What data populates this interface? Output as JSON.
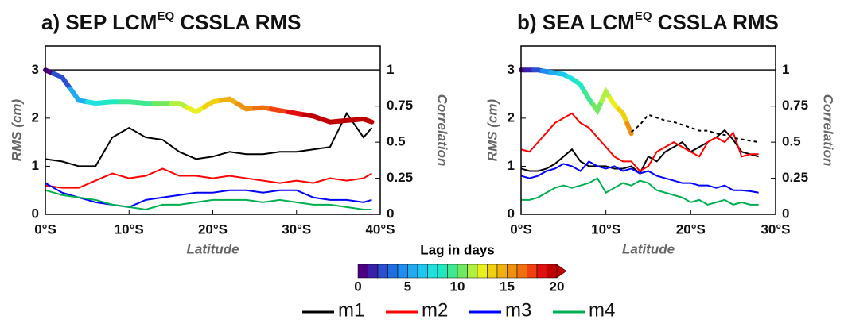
{
  "chart_data": [
    {
      "type": "line",
      "title": "a) SEP LCM",
      "title_sup": "EQ",
      "title_end": " CSSLA RMS",
      "x_label": "Latitude",
      "y_label": "RMS (cm)",
      "y2_label": "Correlation",
      "xlim": [
        0,
        40
      ],
      "xticks": [
        {
          "value": 0,
          "label": "0°S"
        },
        {
          "value": 10,
          "label": "10°S"
        },
        {
          "value": 20,
          "label": "20°S"
        },
        {
          "value": 30,
          "label": "30°S"
        },
        {
          "value": 40,
          "label": "40°S"
        }
      ],
      "ylim": [
        0,
        3.5
      ],
      "yticks": [
        0,
        1,
        2,
        3
      ],
      "y2lim": [
        0,
        1.1667
      ],
      "y2ticks": [
        0,
        0.25,
        0.5,
        0.75,
        1
      ],
      "reference_line": {
        "value": 1,
        "axis": "y2",
        "color": "#333333"
      },
      "series": [
        {
          "name": "m1",
          "color": "#000000",
          "x": [
            0,
            2,
            4,
            6,
            8,
            10,
            12,
            14,
            16,
            18,
            20,
            22,
            24,
            26,
            28,
            30,
            32,
            34,
            36,
            38,
            39
          ],
          "values": [
            1.15,
            1.1,
            1.0,
            1.0,
            1.6,
            1.8,
            1.6,
            1.55,
            1.3,
            1.15,
            1.2,
            1.3,
            1.25,
            1.25,
            1.3,
            1.3,
            1.35,
            1.4,
            2.1,
            1.6,
            1.8
          ]
        },
        {
          "name": "m2",
          "color": "#ff0000",
          "x": [
            0,
            2,
            4,
            6,
            8,
            10,
            12,
            14,
            16,
            18,
            20,
            22,
            24,
            26,
            28,
            30,
            32,
            34,
            36,
            38,
            39
          ],
          "values": [
            0.6,
            0.55,
            0.55,
            0.7,
            0.85,
            0.75,
            0.8,
            0.95,
            0.8,
            0.8,
            0.75,
            0.8,
            0.75,
            0.7,
            0.65,
            0.7,
            0.65,
            0.75,
            0.7,
            0.75,
            0.85
          ]
        },
        {
          "name": "m3",
          "color": "#0000ff",
          "x": [
            0,
            2,
            4,
            6,
            8,
            10,
            12,
            14,
            16,
            18,
            20,
            22,
            24,
            26,
            28,
            30,
            32,
            34,
            36,
            38,
            39
          ],
          "values": [
            0.65,
            0.45,
            0.35,
            0.25,
            0.2,
            0.15,
            0.3,
            0.35,
            0.4,
            0.45,
            0.45,
            0.5,
            0.5,
            0.45,
            0.5,
            0.5,
            0.35,
            0.3,
            0.3,
            0.25,
            0.3
          ]
        },
        {
          "name": "m4",
          "color": "#00b050",
          "x": [
            0,
            2,
            4,
            6,
            8,
            10,
            12,
            14,
            16,
            18,
            20,
            22,
            24,
            26,
            28,
            30,
            32,
            34,
            36,
            38,
            39
          ],
          "values": [
            0.5,
            0.4,
            0.35,
            0.3,
            0.2,
            0.15,
            0.1,
            0.2,
            0.2,
            0.25,
            0.3,
            0.3,
            0.3,
            0.25,
            0.3,
            0.25,
            0.2,
            0.2,
            0.15,
            0.1,
            0.1
          ]
        },
        {
          "axis": "y2",
          "x": [
            0,
            2,
            4,
            6,
            8,
            10,
            12,
            14,
            16,
            18,
            20,
            22,
            24,
            26,
            28,
            30,
            32,
            34,
            36,
            38,
            39
          ],
          "values": [
            1.0,
            0.95,
            0.79,
            0.77,
            0.78,
            0.78,
            0.77,
            0.77,
            0.77,
            0.71,
            0.78,
            0.8,
            0.73,
            0.74,
            0.72,
            0.7,
            0.68,
            0.64,
            0.65,
            0.66,
            0.64
          ],
          "lags": [
            0,
            2,
            5,
            7,
            8,
            9,
            9,
            10,
            11,
            12,
            13,
            14,
            15,
            16,
            17,
            18,
            19,
            19,
            20,
            20,
            19
          ]
        }
      ]
    },
    {
      "type": "line",
      "title": "b) SEA LCM",
      "title_sup": "EQ",
      "title_end": " CSSLA RMS",
      "x_label": "Latitude",
      "y_label": "RMS (cm)",
      "y2_label": "Correlation",
      "xlim": [
        0,
        30
      ],
      "xticks": [
        {
          "value": 0,
          "label": "0°S"
        },
        {
          "value": 10,
          "label": "10°S"
        },
        {
          "value": 20,
          "label": "20°S"
        },
        {
          "value": 30,
          "label": "30°S"
        }
      ],
      "ylim": [
        0,
        3.5
      ],
      "yticks": [
        0,
        1,
        2,
        3
      ],
      "y2lim": [
        0,
        1.1667
      ],
      "y2ticks": [
        0,
        0.25,
        0.5,
        0.75,
        1
      ],
      "reference_line": {
        "value": 1,
        "axis": "y2",
        "color": "#333333"
      },
      "series": [
        {
          "name": "m1",
          "color": "#000000",
          "x": [
            0,
            1,
            2,
            3,
            4,
            5,
            6,
            7,
            8,
            9,
            10,
            11,
            12,
            13,
            14,
            15,
            16,
            17,
            18,
            19,
            20,
            21,
            22,
            23,
            24,
            25,
            26,
            27,
            28
          ],
          "values": [
            0.95,
            0.9,
            0.9,
            0.95,
            1.05,
            1.2,
            1.35,
            1.1,
            1.0,
            1.0,
            1.0,
            0.95,
            0.95,
            1.0,
            0.85,
            1.2,
            1.1,
            1.3,
            1.4,
            1.5,
            1.3,
            1.4,
            1.5,
            1.6,
            1.75,
            1.55,
            1.3,
            1.25,
            1.2
          ]
        },
        {
          "name": "m2",
          "color": "#ff0000",
          "x": [
            0,
            1,
            2,
            3,
            4,
            5,
            6,
            7,
            8,
            9,
            10,
            11,
            12,
            13,
            14,
            15,
            16,
            17,
            18,
            19,
            20,
            21,
            22,
            23,
            24,
            25,
            26,
            27,
            28
          ],
          "values": [
            1.35,
            1.3,
            1.5,
            1.7,
            1.9,
            2.0,
            2.1,
            1.9,
            1.8,
            1.6,
            1.4,
            1.2,
            1.1,
            1.1,
            0.9,
            1.0,
            1.3,
            1.4,
            1.5,
            1.4,
            1.3,
            1.2,
            1.5,
            1.6,
            1.5,
            1.7,
            1.2,
            1.25,
            1.25
          ]
        },
        {
          "name": "m3",
          "color": "#0000ff",
          "x": [
            0,
            1,
            2,
            3,
            4,
            5,
            6,
            7,
            8,
            9,
            10,
            11,
            12,
            13,
            14,
            15,
            16,
            17,
            18,
            19,
            20,
            21,
            22,
            23,
            24,
            25,
            26,
            27,
            28
          ],
          "values": [
            0.8,
            0.75,
            0.8,
            0.9,
            0.95,
            1.05,
            1.0,
            0.9,
            1.1,
            1.0,
            0.95,
            1.0,
            0.9,
            0.95,
            0.85,
            0.9,
            0.8,
            0.75,
            0.7,
            0.65,
            0.65,
            0.6,
            0.6,
            0.55,
            0.6,
            0.5,
            0.5,
            0.48,
            0.45
          ]
        },
        {
          "name": "m4",
          "color": "#00b050",
          "x": [
            0,
            1,
            2,
            3,
            4,
            5,
            6,
            7,
            8,
            9,
            10,
            11,
            12,
            13,
            14,
            15,
            16,
            17,
            18,
            19,
            20,
            21,
            22,
            23,
            24,
            25,
            26,
            27,
            28
          ],
          "values": [
            0.3,
            0.3,
            0.35,
            0.45,
            0.55,
            0.6,
            0.55,
            0.6,
            0.65,
            0.75,
            0.45,
            0.55,
            0.65,
            0.6,
            0.7,
            0.65,
            0.5,
            0.45,
            0.4,
            0.35,
            0.25,
            0.3,
            0.2,
            0.25,
            0.3,
            0.2,
            0.25,
            0.2,
            0.2
          ]
        },
        {
          "axis": "y2",
          "x": [
            0,
            1,
            2,
            3,
            4,
            5,
            6,
            7,
            8,
            9,
            10,
            11,
            12,
            13
          ],
          "values": [
            1.0,
            1.0,
            1.0,
            0.99,
            0.98,
            0.97,
            0.94,
            0.9,
            0.8,
            0.72,
            0.85,
            0.76,
            0.7,
            0.56
          ],
          "lags": [
            0,
            1,
            2,
            4,
            5,
            6,
            7,
            8,
            9,
            10,
            11,
            12,
            13,
            15
          ]
        },
        {
          "axis": "y2",
          "color": "#000000",
          "dash": true,
          "x": [
            13,
            14,
            15,
            16,
            17,
            18,
            19,
            20,
            21,
            22,
            23,
            24,
            25,
            26,
            27,
            28
          ],
          "values": [
            0.57,
            0.62,
            0.69,
            0.67,
            0.65,
            0.64,
            0.62,
            0.6,
            0.58,
            0.58,
            0.56,
            0.55,
            0.53,
            0.52,
            0.51,
            0.5
          ]
        }
      ]
    }
  ],
  "colorbar": {
    "label": "Lag in days",
    "range": [
      0,
      20
    ],
    "ticks": [
      0,
      5,
      10,
      15,
      20
    ],
    "colors": [
      "#4b0082",
      "#3a1fa8",
      "#2a4fd0",
      "#1f6fe0",
      "#1e8ef0",
      "#20aaf0",
      "#1cc8f0",
      "#20e0e0",
      "#20e8c0",
      "#40e890",
      "#70e860",
      "#b0f040",
      "#e8f020",
      "#f0d010",
      "#f0b010",
      "#f09010",
      "#f07010",
      "#f04010",
      "#e01010",
      "#c00000"
    ]
  }
}
